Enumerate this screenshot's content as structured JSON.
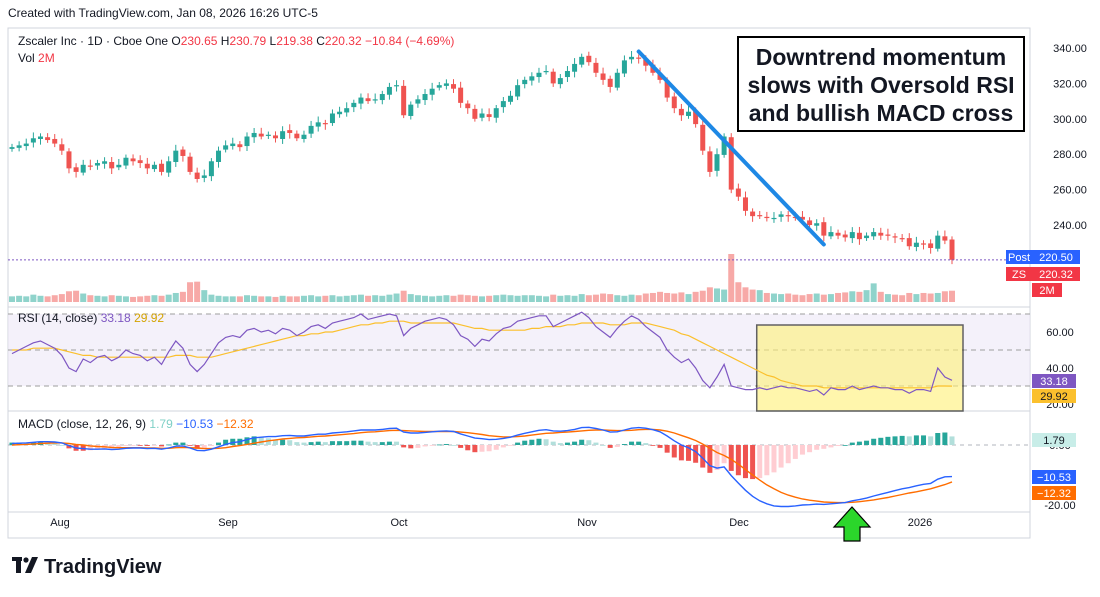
{
  "header": {
    "created": "Created with TradingView.com, Jan 08, 2026 16:26 UTC-5"
  },
  "legend": {
    "symbol": "Zscaler Inc · 1D · Cboe One",
    "o_label": "O",
    "o": "230.65",
    "h_label": "H",
    "h": "230.79",
    "l_label": "L",
    "l": "219.38",
    "c_label": "C",
    "c": "220.32",
    "chg": "−10.84 (−4.69%)",
    "vol_label": "Vol",
    "vol": "2M"
  },
  "rsi_legend": {
    "label": "RSI (14, close)",
    "v1": "33.18",
    "v2": "29.92"
  },
  "macd_legend": {
    "label": "MACD (close, 12, 26, 9)",
    "v1": "1.79",
    "v2": "−10.53",
    "v3": "−12.32"
  },
  "annotation": {
    "line1": "Downtrend momentum",
    "line2": "slows with Oversold RSI",
    "line3": "and bullish MACD cross"
  },
  "brand": {
    "name": "TradingView"
  },
  "colors": {
    "up": "#26a69a",
    "down": "#ef5350",
    "rsi": "#7e57c2",
    "rsi_ma": "#fbc02d",
    "macd": "#2962ff",
    "signal": "#ff6d00",
    "trend": "#1e88e5",
    "highlight": "#fff176",
    "arrow": "#2bd62b"
  },
  "chart_data": [
    {
      "type": "candlestick",
      "title": "Zscaler Inc · 1D · Cboe One",
      "yticks": [
        "340.00",
        "320.00",
        "300.00",
        "280.00",
        "260.00",
        "240.00"
      ],
      "ylim": [
        216,
        345
      ],
      "xticks": [
        "Aug",
        "Sep",
        "Oct",
        "Nov",
        "Dec",
        "2026"
      ],
      "x_range": [
        "2025-07-24",
        "2026-01-08"
      ],
      "close": [
        284,
        285,
        286,
        289,
        290,
        288,
        286,
        282,
        272,
        270,
        274,
        273,
        275,
        276,
        272,
        274,
        278,
        276,
        275,
        272,
        274,
        270,
        276,
        282,
        279,
        270,
        266,
        268,
        276,
        282,
        285,
        286,
        284,
        290,
        292,
        290,
        291,
        289,
        293,
        292,
        289,
        291,
        296,
        298,
        297,
        303,
        304,
        306,
        309,
        312,
        310,
        311,
        314,
        318,
        319,
        302,
        308,
        311,
        314,
        317,
        319,
        320,
        317,
        309,
        306,
        300,
        303,
        301,
        306,
        310,
        313,
        319,
        322,
        324,
        326,
        327,
        320,
        323,
        327,
        331,
        335,
        332,
        326,
        322,
        318,
        326,
        333,
        335,
        334,
        330,
        326,
        322,
        312,
        306,
        302,
        304,
        297,
        282,
        270,
        280,
        290,
        260,
        256,
        248,
        245,
        245,
        244,
        244,
        246,
        245,
        244,
        243,
        240,
        241,
        234,
        236,
        234,
        233,
        236,
        232,
        234,
        236,
        234,
        234,
        233,
        232,
        228,
        230,
        229,
        227,
        234,
        231.2,
        220.32
      ],
      "volume_M": [
        1.0,
        1.1,
        1.0,
        1.3,
        1.1,
        1.0,
        1.2,
        1.4,
        1.9,
        2.0,
        1.5,
        1.2,
        1.1,
        1.0,
        1.2,
        1.1,
        1.0,
        0.9,
        1.0,
        1.1,
        1.2,
        1.1,
        1.3,
        1.6,
        1.8,
        3.5,
        3.6,
        2.1,
        1.3,
        1.1,
        1.0,
        1.0,
        1.0,
        1.2,
        1.1,
        1.0,
        1.0,
        0.9,
        1.1,
        1.0,
        1.0,
        1.1,
        1.2,
        1.0,
        1.1,
        1.2,
        1.0,
        1.1,
        1.2,
        1.3,
        1.1,
        1.2,
        1.1,
        1.3,
        1.5,
        2.0,
        1.4,
        1.2,
        1.1,
        1.0,
        1.1,
        1.2,
        1.1,
        1.3,
        1.2,
        1.1,
        1.0,
        1.1,
        1.2,
        1.3,
        1.2,
        1.1,
        1.2,
        1.2,
        1.1,
        1.0,
        1.3,
        1.1,
        1.2,
        1.1,
        1.4,
        1.2,
        1.3,
        1.5,
        1.4,
        1.2,
        1.1,
        1.3,
        1.2,
        1.5,
        1.6,
        1.8,
        1.6,
        1.5,
        1.7,
        1.4,
        1.8,
        2.0,
        2.6,
        2.4,
        2.2,
        8.5,
        3.5,
        2.6,
        2.2,
        2.1,
        1.6,
        1.5,
        1.4,
        1.5,
        1.3,
        1.2,
        1.4,
        1.5,
        1.3,
        1.4,
        1.6,
        1.7,
        1.9,
        1.8,
        2.1,
        3.3,
        1.8,
        1.4,
        1.3,
        1.2,
        1.6,
        1.4,
        1.6,
        1.5,
        1.6,
        1.9,
        2.0
      ]
    },
    {
      "type": "line",
      "title": "RSI (14, close)",
      "yticks": [
        "60.00",
        "40.00",
        "20.00"
      ],
      "ylim": [
        14,
        72
      ],
      "levels": [
        70,
        50,
        30
      ],
      "series": [
        {
          "name": "RSI",
          "values": [
            48,
            50,
            52,
            54,
            55,
            53,
            51,
            47,
            40,
            38,
            45,
            43,
            46,
            47,
            44,
            46,
            50,
            48,
            47,
            44,
            46,
            42,
            49,
            55,
            51,
            42,
            38,
            42,
            48,
            54,
            57,
            58,
            57,
            61,
            62,
            60,
            61,
            59,
            62,
            61,
            58,
            60,
            63,
            64,
            62,
            65,
            66,
            67,
            68,
            70,
            67,
            68,
            69,
            70,
            69,
            58,
            62,
            64,
            66,
            67,
            68,
            67,
            64,
            58,
            56,
            52,
            56,
            55,
            59,
            62,
            63,
            66,
            67,
            68,
            69,
            69,
            63,
            65,
            67,
            69,
            71,
            68,
            63,
            60,
            57,
            62,
            66,
            69,
            67,
            63,
            60,
            57,
            50,
            46,
            43,
            45,
            40,
            33,
            29,
            35,
            42,
            30,
            29,
            28,
            28,
            29,
            28,
            29,
            30,
            29,
            29,
            28,
            27,
            28,
            25,
            29,
            28,
            28,
            30,
            28,
            29,
            30,
            29,
            29,
            28,
            28,
            26,
            28,
            28,
            27,
            40,
            35,
            33.18
          ]
        },
        {
          "name": "RSI-based MA",
          "values": [
            50,
            50,
            50,
            51,
            51,
            51,
            51,
            50,
            49,
            48,
            47,
            47,
            46,
            46,
            46,
            46,
            46,
            46,
            46,
            46,
            46,
            46,
            46,
            47,
            47,
            47,
            46,
            46,
            46,
            47,
            48,
            49,
            50,
            51,
            52,
            53,
            54,
            55,
            56,
            57,
            58,
            58,
            59,
            59,
            60,
            60,
            61,
            62,
            63,
            64,
            64,
            65,
            65,
            66,
            66,
            66,
            65,
            65,
            65,
            65,
            65,
            65,
            65,
            64,
            63,
            62,
            62,
            61,
            61,
            61,
            61,
            61,
            61,
            62,
            62,
            63,
            63,
            63,
            64,
            64,
            65,
            65,
            65,
            65,
            64,
            64,
            64,
            65,
            65,
            65,
            64,
            63,
            62,
            61,
            59,
            58,
            56,
            54,
            52,
            50,
            48,
            46,
            44,
            42,
            40,
            38,
            36,
            35,
            33,
            32,
            31,
            30,
            30,
            30,
            29,
            29,
            29,
            29,
            29,
            29,
            29,
            29,
            29,
            29,
            29,
            29,
            29,
            29,
            29,
            29,
            30,
            30,
            29.92
          ]
        }
      ]
    },
    {
      "type": "line+bar",
      "title": "MACD (close, 12, 26, 9)",
      "yticks": [
        "0.00",
        "-20.00"
      ],
      "ylim": [
        -22,
        8
      ],
      "series": [
        {
          "name": "MACD",
          "values": [
            0.5,
            0.6,
            0.7,
            0.9,
            1.1,
            1.1,
            1.0,
            0.7,
            -0.2,
            -1.0,
            -1.2,
            -1.4,
            -1.4,
            -1.3,
            -1.5,
            -1.4,
            -1.1,
            -1.0,
            -1.0,
            -1.2,
            -1.1,
            -1.4,
            -1.0,
            -0.4,
            -0.3,
            -1.0,
            -1.8,
            -1.9,
            -1.4,
            -0.6,
            0.2,
            0.8,
            1.1,
            1.8,
            2.4,
            2.6,
            2.8,
            2.8,
            3.1,
            3.2,
            3.0,
            3.0,
            3.3,
            3.6,
            3.6,
            4.0,
            4.2,
            4.4,
            4.7,
            5.0,
            5.0,
            5.0,
            5.2,
            5.5,
            5.6,
            4.3,
            4.0,
            4.0,
            4.2,
            4.4,
            4.6,
            4.7,
            4.5,
            3.7,
            3.0,
            2.3,
            2.1,
            1.8,
            1.9,
            2.2,
            2.6,
            3.3,
            3.9,
            4.4,
            4.9,
            5.1,
            4.7,
            4.6,
            4.8,
            5.2,
            5.8,
            5.9,
            5.5,
            5.0,
            4.3,
            4.4,
            5.0,
            5.6,
            5.8,
            5.6,
            5.1,
            4.4,
            3.0,
            1.4,
            0.0,
            -0.9,
            -2.2,
            -4.4,
            -6.9,
            -7.7,
            -7.3,
            -10.2,
            -12.7,
            -15.1,
            -17.1,
            -18.6,
            -19.6,
            -20.3,
            -20.5,
            -20.5,
            -20.3,
            -20.0,
            -19.9,
            -19.7,
            -19.8,
            -19.6,
            -19.4,
            -19.2,
            -18.6,
            -18.2,
            -17.7,
            -17.0,
            -16.4,
            -15.8,
            -15.2,
            -14.6,
            -14.2,
            -13.6,
            -13.1,
            -12.8,
            -11.4,
            -10.6,
            -10.53
          ]
        },
        {
          "name": "Signal",
          "values": [
            0.0,
            0.1,
            0.2,
            0.3,
            0.5,
            0.6,
            0.7,
            0.7,
            0.5,
            0.2,
            0.0,
            -0.3,
            -0.5,
            -0.6,
            -0.8,
            -0.9,
            -0.9,
            -0.9,
            -0.9,
            -1.0,
            -1.0,
            -1.1,
            -1.1,
            -0.9,
            -0.8,
            -0.9,
            -1.0,
            -1.2,
            -1.2,
            -1.1,
            -0.9,
            -0.5,
            -0.2,
            0.2,
            0.6,
            1.0,
            1.4,
            1.7,
            2.0,
            2.2,
            2.4,
            2.5,
            2.7,
            2.9,
            3.0,
            3.2,
            3.4,
            3.6,
            3.8,
            4.1,
            4.3,
            4.4,
            4.6,
            4.8,
            4.9,
            4.8,
            4.7,
            4.6,
            4.5,
            4.5,
            4.5,
            4.5,
            4.5,
            4.3,
            4.1,
            3.8,
            3.5,
            3.1,
            2.9,
            2.7,
            2.7,
            2.8,
            3.0,
            3.3,
            3.6,
            3.9,
            4.0,
            4.2,
            4.3,
            4.5,
            4.7,
            4.9,
            5.0,
            5.0,
            4.9,
            4.8,
            4.8,
            4.9,
            5.1,
            5.2,
            5.2,
            5.0,
            4.6,
            4.0,
            3.2,
            2.4,
            1.5,
            0.3,
            -1.1,
            -2.5,
            -3.5,
            -4.8,
            -6.4,
            -8.2,
            -10.0,
            -11.7,
            -13.3,
            -14.6,
            -15.8,
            -16.7,
            -17.4,
            -18.0,
            -18.4,
            -18.7,
            -19.0,
            -19.1,
            -19.2,
            -19.2,
            -19.1,
            -18.9,
            -18.6,
            -18.3,
            -17.9,
            -17.5,
            -17.0,
            -16.5,
            -16.0,
            -15.6,
            -15.1,
            -14.6,
            -13.9,
            -13.2,
            -12.32
          ]
        }
      ],
      "histogram_series": "MACD minus Signal"
    }
  ]
}
